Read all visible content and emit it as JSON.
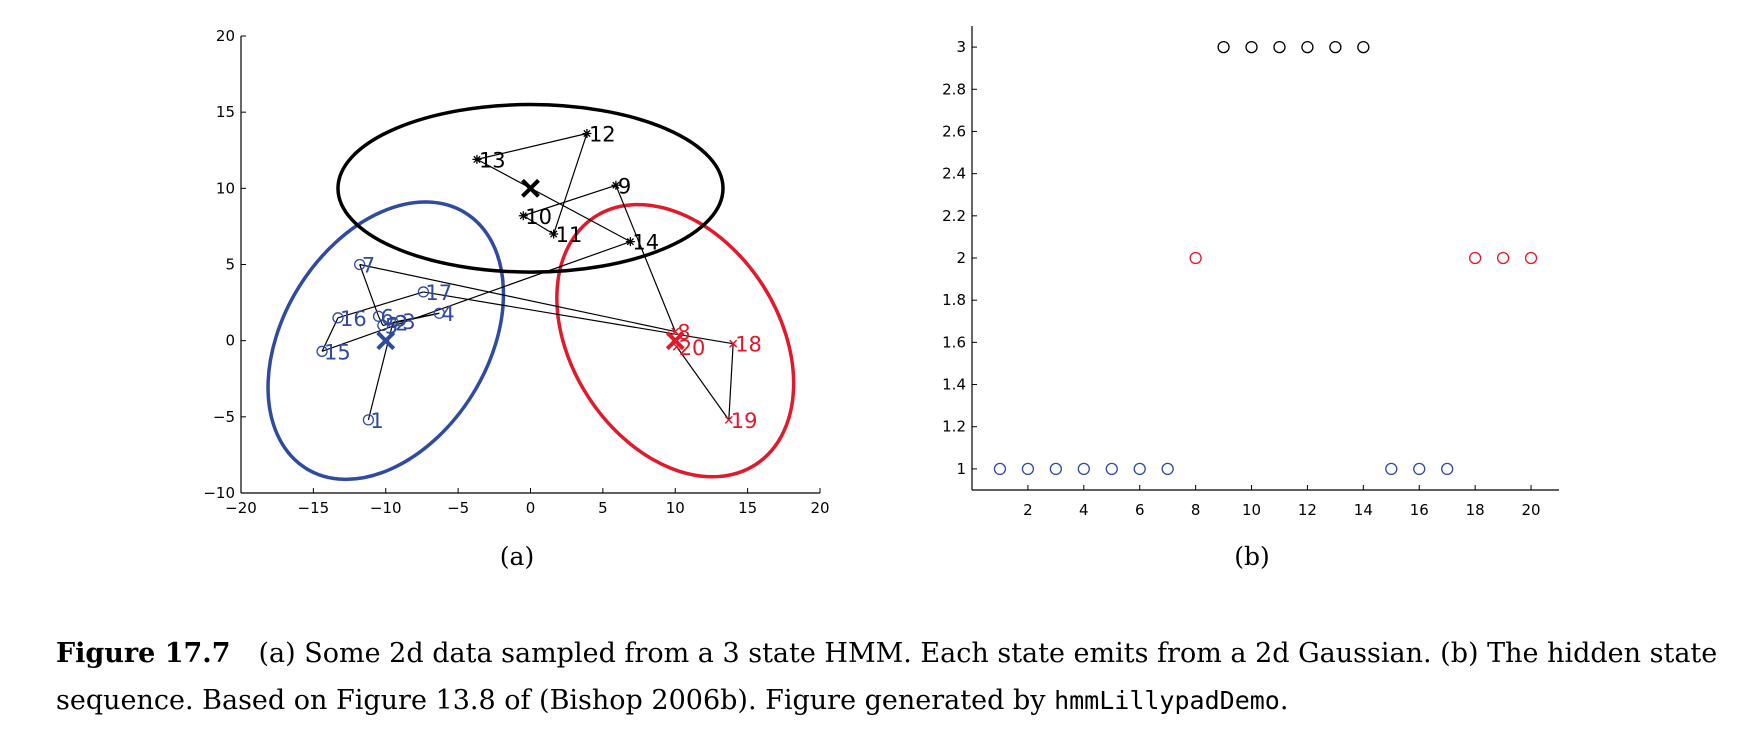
{
  "colors": {
    "state1": "#2f4a9e",
    "state2": "#e01a2b",
    "state3": "#000000",
    "axis": "#000000"
  },
  "panels": {
    "a_label": "(a)",
    "b_label": "(b)"
  },
  "caption": {
    "label": "Figure 17.7",
    "text1": "(a) Some 2d data sampled from a 3 state HMM. Each state emits from a 2d Gaussian. (b) The hidden state sequence. Based on Figure 13.8 of (Bishop 2006b). Figure generated by ",
    "code": "hmmLillypadDemo",
    "text2": "."
  },
  "chart_data": [
    {
      "type": "scatter",
      "panel": "(a)",
      "xlim": [
        -20,
        20
      ],
      "ylim": [
        -10,
        20
      ],
      "xticks": [
        -20,
        -15,
        -10,
        -5,
        0,
        5,
        10,
        15,
        20
      ],
      "yticks": [
        -10,
        -5,
        0,
        5,
        10,
        15,
        20
      ],
      "xtick_labels": [
        "−20",
        "−15",
        "−10",
        "−5",
        "0",
        "5",
        "10",
        "15",
        "20"
      ],
      "ytick_labels": [
        "−10",
        "−5",
        "0",
        "5",
        "10",
        "15",
        "20"
      ],
      "grid": false,
      "points": [
        {
          "t": 1,
          "x": -11.2,
          "y": -5.2,
          "state": 1
        },
        {
          "t": 2,
          "x": -9.5,
          "y": 1.2,
          "state": 1
        },
        {
          "t": 3,
          "x": -9.0,
          "y": 1.3,
          "state": 1
        },
        {
          "t": 4,
          "x": -6.3,
          "y": 1.8,
          "state": 1
        },
        {
          "t": 5,
          "x": -10.2,
          "y": 1.0,
          "state": 1
        },
        {
          "t": 6,
          "x": -10.5,
          "y": 1.6,
          "state": 1
        },
        {
          "t": 7,
          "x": -11.8,
          "y": 5.0,
          "state": 1
        },
        {
          "t": 8,
          "x": 10.0,
          "y": 0.6,
          "state": 2
        },
        {
          "t": 9,
          "x": 5.9,
          "y": 10.2,
          "state": 3
        },
        {
          "t": 10,
          "x": -0.5,
          "y": 8.2,
          "state": 3
        },
        {
          "t": 11,
          "x": 1.6,
          "y": 7.0,
          "state": 3
        },
        {
          "t": 12,
          "x": 3.9,
          "y": 13.6,
          "state": 3
        },
        {
          "t": 13,
          "x": -3.7,
          "y": 11.9,
          "state": 3
        },
        {
          "t": 14,
          "x": 6.9,
          "y": 6.5,
          "state": 3
        },
        {
          "t": 15,
          "x": -14.4,
          "y": -0.7,
          "state": 1
        },
        {
          "t": 16,
          "x": -13.3,
          "y": 1.5,
          "state": 1
        },
        {
          "t": 17,
          "x": -7.4,
          "y": 3.2,
          "state": 1
        },
        {
          "t": 18,
          "x": 14.0,
          "y": -0.2,
          "state": 2
        },
        {
          "t": 19,
          "x": 13.7,
          "y": -5.2,
          "state": 2
        },
        {
          "t": 20,
          "x": 10.1,
          "y": -0.4,
          "state": 2
        }
      ],
      "means": [
        {
          "state": 1,
          "x": -10.0,
          "y": 0.0
        },
        {
          "state": 2,
          "x": 10.0,
          "y": 0.0
        },
        {
          "state": 3,
          "x": 0.0,
          "y": 10.0
        }
      ],
      "ellipses": [
        {
          "state": 1,
          "cx": -10.0,
          "cy": 0.0,
          "a": 10.4,
          "b": 6.7,
          "angle_deg": 58
        },
        {
          "state": 2,
          "cx": 10.0,
          "cy": 0.0,
          "a": 10.2,
          "b": 6.8,
          "angle_deg": -57
        },
        {
          "state": 3,
          "cx": 0.0,
          "cy": 10.0,
          "a": 13.3,
          "b": 5.5,
          "angle_deg": 0
        }
      ]
    },
    {
      "type": "scatter",
      "panel": "(b)",
      "xlim": [
        0,
        21
      ],
      "ylim": [
        0.9,
        3.1
      ],
      "xticks": [
        2,
        4,
        6,
        8,
        10,
        12,
        14,
        16,
        18,
        20
      ],
      "yticks": [
        1,
        1.2,
        1.4,
        1.6,
        1.8,
        2,
        2.2,
        2.4,
        2.6,
        2.8,
        3
      ],
      "xtick_labels": [
        "2",
        "4",
        "6",
        "8",
        "10",
        "12",
        "14",
        "16",
        "18",
        "20"
      ],
      "ytick_labels": [
        "1",
        "1.2",
        "1.4",
        "1.6",
        "1.8",
        "2",
        "2.2",
        "2.4",
        "2.6",
        "2.8",
        "3"
      ],
      "grid": false,
      "x": [
        1,
        2,
        3,
        4,
        5,
        6,
        7,
        8,
        9,
        10,
        11,
        12,
        13,
        14,
        15,
        16,
        17,
        18,
        19,
        20
      ],
      "y": [
        1,
        1,
        1,
        1,
        1,
        1,
        1,
        2,
        3,
        3,
        3,
        3,
        3,
        3,
        1,
        1,
        1,
        2,
        2,
        2
      ]
    }
  ]
}
